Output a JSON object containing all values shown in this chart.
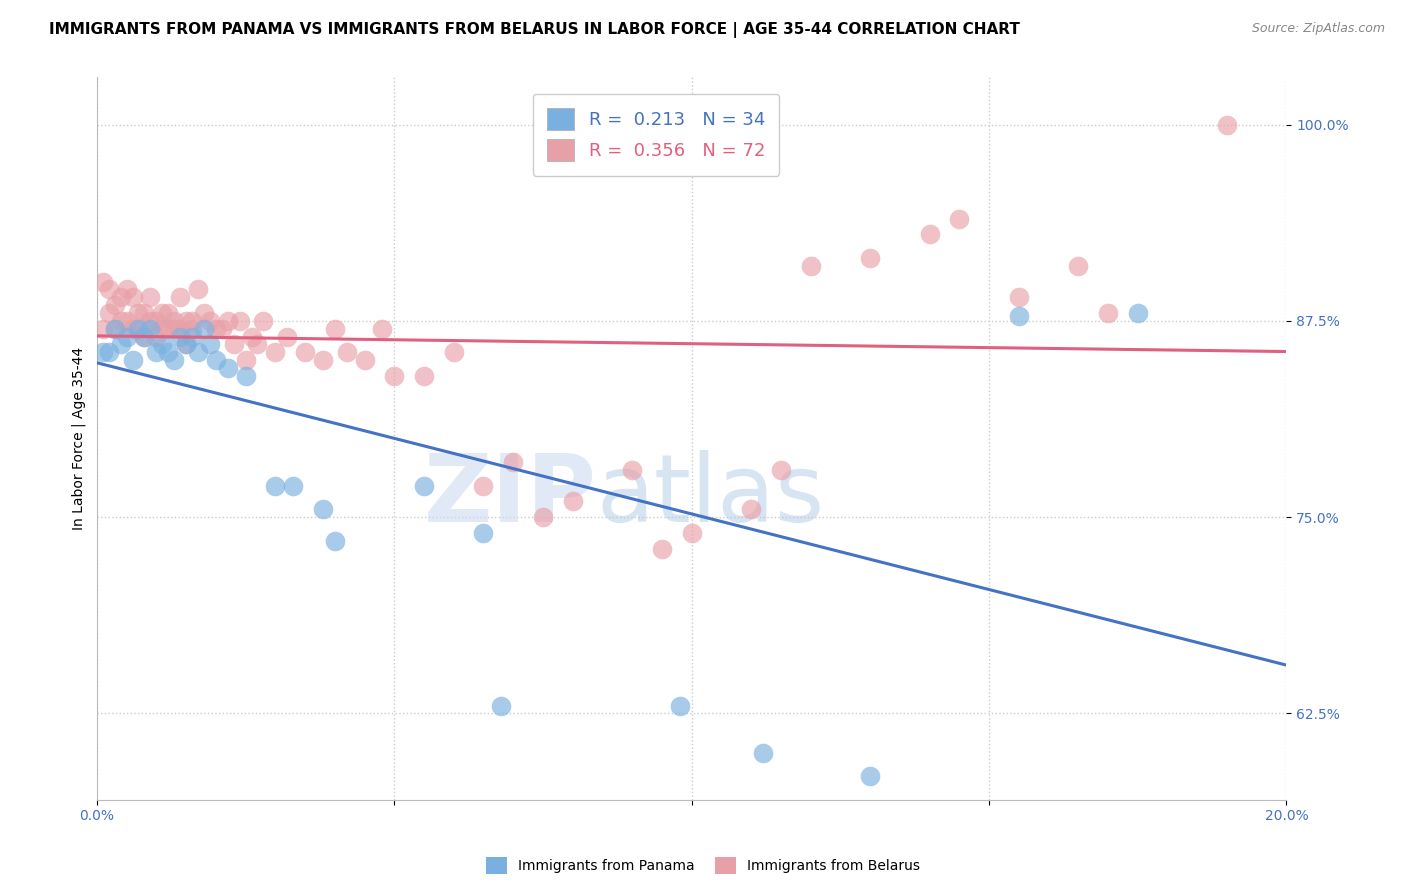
{
  "title": "IMMIGRANTS FROM PANAMA VS IMMIGRANTS FROM BELARUS IN LABOR FORCE | AGE 35-44 CORRELATION CHART",
  "source": "Source: ZipAtlas.com",
  "ylabel": "In Labor Force | Age 35-44",
  "legend_label_panama": "Immigrants from Panama",
  "legend_label_belarus": "Immigrants from Belarus",
  "R_panama": 0.213,
  "N_panama": 34,
  "R_belarus": 0.356,
  "N_belarus": 72,
  "xlim": [
    0.0,
    0.2
  ],
  "ylim": [
    0.57,
    1.03
  ],
  "yticks": [
    0.625,
    0.75,
    0.875,
    1.0
  ],
  "ytick_labels": [
    "62.5%",
    "75.0%",
    "87.5%",
    "100.0%"
  ],
  "xticks": [
    0.0,
    0.05,
    0.1,
    0.15,
    0.2
  ],
  "xtick_labels": [
    "0.0%",
    "",
    "",
    "",
    "20.0%"
  ],
  "color_panama": "#7ab0e0",
  "color_belarus": "#e8a0a8",
  "line_color_panama": "#4472c4",
  "line_color_belarus": "#e06080",
  "axis_color": "#4472c4",
  "background_color": "#ffffff",
  "panama_x": [
    0.001,
    0.002,
    0.003,
    0.004,
    0.005,
    0.006,
    0.007,
    0.008,
    0.009,
    0.01,
    0.011,
    0.012,
    0.013,
    0.014,
    0.015,
    0.016,
    0.017,
    0.018,
    0.019,
    0.02,
    0.022,
    0.025,
    0.03,
    0.033,
    0.038,
    0.04,
    0.055,
    0.065,
    0.068,
    0.098,
    0.112,
    0.13,
    0.155,
    0.175
  ],
  "panama_y": [
    0.855,
    0.855,
    0.87,
    0.86,
    0.865,
    0.85,
    0.87,
    0.865,
    0.87,
    0.855,
    0.86,
    0.855,
    0.85,
    0.865,
    0.86,
    0.865,
    0.855,
    0.87,
    0.86,
    0.85,
    0.845,
    0.84,
    0.77,
    0.77,
    0.755,
    0.735,
    0.77,
    0.74,
    0.63,
    0.63,
    0.6,
    0.585,
    0.878,
    0.88
  ],
  "belarus_x": [
    0.001,
    0.001,
    0.002,
    0.002,
    0.003,
    0.003,
    0.004,
    0.004,
    0.005,
    0.005,
    0.006,
    0.006,
    0.007,
    0.007,
    0.008,
    0.008,
    0.009,
    0.009,
    0.01,
    0.01,
    0.011,
    0.011,
    0.012,
    0.012,
    0.013,
    0.013,
    0.014,
    0.014,
    0.015,
    0.015,
    0.016,
    0.016,
    0.017,
    0.018,
    0.019,
    0.02,
    0.021,
    0.022,
    0.023,
    0.024,
    0.025,
    0.026,
    0.027,
    0.028,
    0.03,
    0.032,
    0.035,
    0.038,
    0.04,
    0.042,
    0.045,
    0.048,
    0.05,
    0.055,
    0.06,
    0.065,
    0.07,
    0.075,
    0.08,
    0.09,
    0.095,
    0.1,
    0.11,
    0.115,
    0.12,
    0.13,
    0.14,
    0.145,
    0.155,
    0.165,
    0.17,
    0.19
  ],
  "belarus_y": [
    0.9,
    0.87,
    0.88,
    0.895,
    0.87,
    0.885,
    0.89,
    0.875,
    0.895,
    0.875,
    0.87,
    0.89,
    0.88,
    0.87,
    0.88,
    0.865,
    0.875,
    0.89,
    0.875,
    0.865,
    0.88,
    0.87,
    0.88,
    0.87,
    0.875,
    0.87,
    0.89,
    0.87,
    0.875,
    0.86,
    0.875,
    0.87,
    0.895,
    0.88,
    0.875,
    0.87,
    0.87,
    0.875,
    0.86,
    0.875,
    0.85,
    0.865,
    0.86,
    0.875,
    0.855,
    0.865,
    0.855,
    0.85,
    0.87,
    0.855,
    0.85,
    0.87,
    0.84,
    0.84,
    0.855,
    0.77,
    0.785,
    0.75,
    0.76,
    0.78,
    0.73,
    0.74,
    0.755,
    0.78,
    0.91,
    0.915,
    0.93,
    0.94,
    0.89,
    0.91,
    0.88,
    1.0
  ],
  "watermark_zip": "ZIP",
  "watermark_atlas": "atlas",
  "title_fontsize": 11,
  "label_fontsize": 10,
  "tick_fontsize": 10,
  "legend_fontsize": 13
}
